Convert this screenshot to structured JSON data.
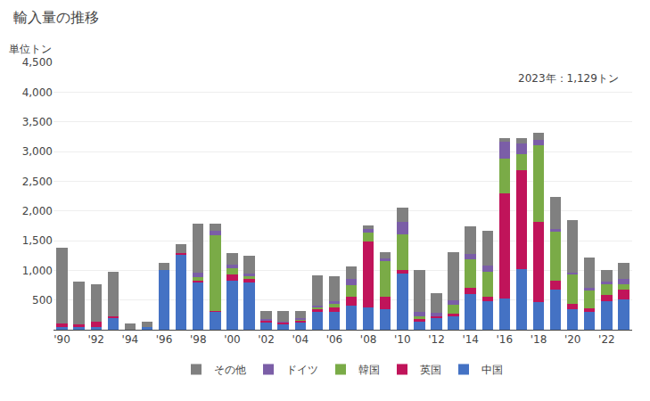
{
  "chart_data": {
    "type": "bar",
    "title": "輸入量の推移",
    "ylabel": "単位トン",
    "annotation": "2023年：1,129トン",
    "stacked": true,
    "grid": true,
    "legend": "bottom",
    "categories": [
      "'90",
      null,
      "'92",
      null,
      "'94",
      null,
      "'96",
      null,
      "'98",
      null,
      "'00",
      null,
      "'02",
      null,
      "'04",
      null,
      "'06",
      null,
      "'08",
      null,
      "'10",
      null,
      "'12",
      null,
      "'14",
      null,
      "'16",
      null,
      "'18",
      null,
      "'20",
      null,
      "'22",
      null
    ],
    "series": [
      {
        "name": "中国",
        "color": "#4472c4",
        "values": [
          50,
          50,
          50,
          200,
          0,
          50,
          1000,
          1270,
          800,
          300,
          820,
          800,
          130,
          100,
          130,
          300,
          300,
          400,
          380,
          350,
          950,
          130,
          200,
          220,
          600,
          480,
          520,
          1020,
          460,
          680,
          350,
          300,
          480,
          510
        ]
      },
      {
        "name": "英国",
        "color": "#c0145a",
        "values": [
          60,
          40,
          80,
          20,
          0,
          0,
          0,
          20,
          30,
          20,
          110,
          50,
          20,
          20,
          20,
          50,
          80,
          150,
          1100,
          200,
          60,
          50,
          30,
          50,
          100,
          70,
          1780,
          1660,
          1350,
          150,
          80,
          60,
          100,
          160
        ]
      },
      {
        "name": "韓国",
        "color": "#7aab47",
        "values": [
          0,
          0,
          0,
          0,
          0,
          0,
          0,
          0,
          50,
          1270,
          100,
          50,
          10,
          0,
          20,
          30,
          50,
          200,
          150,
          600,
          600,
          50,
          0,
          150,
          480,
          430,
          580,
          280,
          1300,
          820,
          500,
          300,
          180,
          100
        ]
      },
      {
        "name": "ドイツ",
        "color": "#7b5ea7",
        "values": [
          0,
          0,
          0,
          0,
          0,
          0,
          0,
          0,
          80,
          70,
          60,
          40,
          20,
          10,
          20,
          30,
          50,
          100,
          70,
          50,
          200,
          70,
          50,
          80,
          100,
          100,
          280,
          180,
          80,
          50,
          30,
          50,
          50,
          80
        ]
      },
      {
        "name": "その他",
        "color": "#808080",
        "values": [
          1270,
          720,
          640,
          760,
          100,
          80,
          130,
          150,
          830,
          130,
          200,
          300,
          140,
          180,
          120,
          500,
          420,
          210,
          60,
          100,
          250,
          700,
          330,
          800,
          460,
          580,
          70,
          80,
          120,
          530,
          880,
          500,
          190,
          280
        ]
      }
    ],
    "ylim": [
      0,
      4500
    ],
    "yticks": [
      500,
      {
        "value": 1000,
        "label": "1,000"
      },
      {
        "value": 1500,
        "label": "1,500"
      },
      {
        "value": 2000,
        "label": "2,000"
      },
      {
        "value": 2500,
        "label": "2,500"
      },
      {
        "value": 3000,
        "label": "3,000"
      },
      {
        "value": 3500,
        "label": "3,500"
      },
      {
        "value": 4000,
        "label": "4,000"
      },
      {
        "value": 4500,
        "label": "4,500"
      }
    ]
  }
}
